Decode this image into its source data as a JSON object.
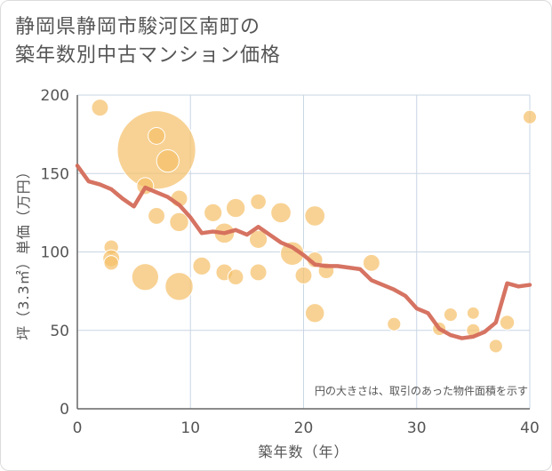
{
  "title_lines": [
    "静岡県静岡市駿河区南町の",
    "築年数別中古マンション価格"
  ],
  "chart_data": {
    "type": "scatter",
    "xlabel": "築年数（年）",
    "ylabel": "坪（3.3㎡）単価（万円）",
    "xlim": [
      0,
      40
    ],
    "ylim": [
      0,
      200
    ],
    "x_ticks": [
      0,
      10,
      20,
      30,
      40
    ],
    "y_ticks": [
      0,
      50,
      100,
      150,
      200
    ],
    "grid": true,
    "annotation": "円の大きさは、取引のあった物件面積を示す",
    "colors": {
      "bubble": "#f5c06b",
      "line": "#d46b5a",
      "grid": "#c9d6e3",
      "text": "#555555"
    },
    "bubbles": [
      {
        "x": 2,
        "y": 192,
        "size": 1.5
      },
      {
        "x": 7,
        "y": 165,
        "size": 7
      },
      {
        "x": 7,
        "y": 174,
        "size": 1.5
      },
      {
        "x": 8,
        "y": 158,
        "size": 2
      },
      {
        "x": 6,
        "y": 142,
        "size": 1.5
      },
      {
        "x": 9,
        "y": 134,
        "size": 1.5
      },
      {
        "x": 7,
        "y": 123,
        "size": 1.5
      },
      {
        "x": 9,
        "y": 119,
        "size": 1.7
      },
      {
        "x": 3,
        "y": 103,
        "size": 1.3
      },
      {
        "x": 3,
        "y": 96,
        "size": 1.5
      },
      {
        "x": 3,
        "y": 93,
        "size": 1.3
      },
      {
        "x": 6,
        "y": 84,
        "size": 2.4
      },
      {
        "x": 9,
        "y": 78,
        "size": 2.5
      },
      {
        "x": 11,
        "y": 91,
        "size": 1.6
      },
      {
        "x": 12,
        "y": 125,
        "size": 1.6
      },
      {
        "x": 13,
        "y": 112,
        "size": 1.8
      },
      {
        "x": 14,
        "y": 128,
        "size": 1.7
      },
      {
        "x": 13,
        "y": 87,
        "size": 1.5
      },
      {
        "x": 14,
        "y": 84,
        "size": 1.4
      },
      {
        "x": 16,
        "y": 132,
        "size": 1.4
      },
      {
        "x": 16,
        "y": 108,
        "size": 1.6
      },
      {
        "x": 16,
        "y": 87,
        "size": 1.5
      },
      {
        "x": 18,
        "y": 125,
        "size": 1.8
      },
      {
        "x": 19,
        "y": 99,
        "size": 2.1
      },
      {
        "x": 20,
        "y": 85,
        "size": 1.5
      },
      {
        "x": 21,
        "y": 123,
        "size": 1.8
      },
      {
        "x": 21,
        "y": 95,
        "size": 1.4
      },
      {
        "x": 21,
        "y": 61,
        "size": 1.7
      },
      {
        "x": 22,
        "y": 88,
        "size": 1.4
      },
      {
        "x": 26,
        "y": 93,
        "size": 1.5
      },
      {
        "x": 28,
        "y": 54,
        "size": 1.2
      },
      {
        "x": 32,
        "y": 51,
        "size": 1.2
      },
      {
        "x": 33,
        "y": 60,
        "size": 1.2
      },
      {
        "x": 35,
        "y": 61,
        "size": 1.1
      },
      {
        "x": 35,
        "y": 50,
        "size": 1.2
      },
      {
        "x": 37,
        "y": 40,
        "size": 1.2
      },
      {
        "x": 38,
        "y": 55,
        "size": 1.3
      },
      {
        "x": 40,
        "y": 186,
        "size": 1.2
      }
    ],
    "trend": {
      "x": [
        0,
        1,
        2,
        3,
        4,
        5,
        6,
        7,
        8,
        9,
        10,
        11,
        12,
        13,
        14,
        15,
        16,
        17,
        18,
        19,
        20,
        21,
        22,
        23,
        24,
        25,
        26,
        27,
        28,
        29,
        30,
        31,
        32,
        33,
        34,
        35,
        36,
        37,
        38,
        39,
        40
      ],
      "y": [
        155,
        145,
        143,
        140,
        134,
        129,
        141,
        138,
        135,
        130,
        122,
        112,
        113,
        112,
        114,
        111,
        116,
        111,
        106,
        103,
        98,
        92,
        91,
        91,
        90,
        89,
        82,
        79,
        76,
        72,
        64,
        61,
        51,
        47,
        45,
        46,
        49,
        55,
        80,
        78,
        79
      ]
    }
  }
}
